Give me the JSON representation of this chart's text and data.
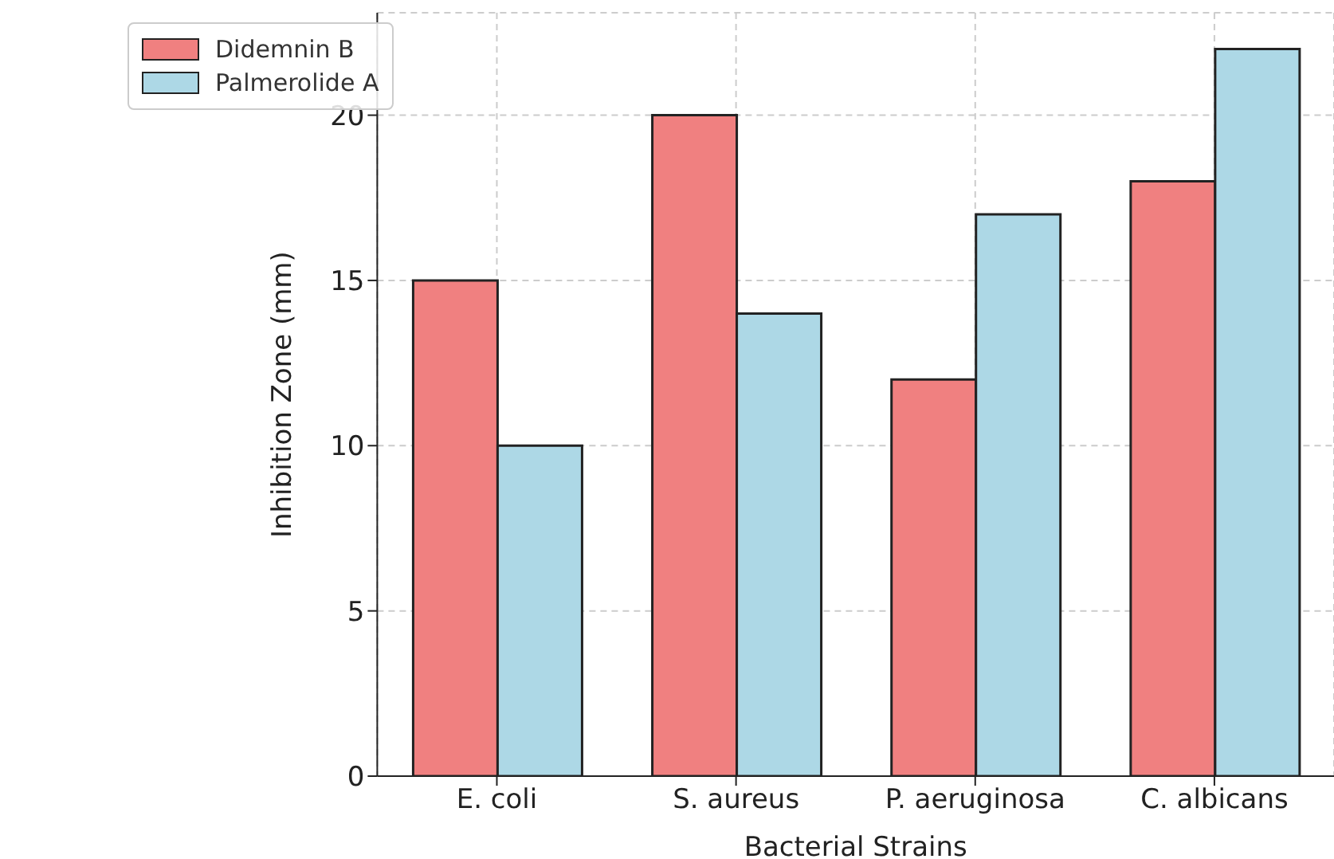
{
  "chart_data": {
    "type": "bar",
    "xlabel": "Bacterial Strains",
    "ylabel": "Inhibition Zone (mm)",
    "categories": [
      "E. coli",
      "S. aureus",
      "P. aeruginosa",
      "C. albicans"
    ],
    "series": [
      {
        "name": "Didemnin B",
        "color": "#f08080",
        "values": [
          15,
          20,
          12,
          18
        ]
      },
      {
        "name": "Palmerolide A",
        "color": "#add8e6",
        "values": [
          10,
          14,
          17,
          22
        ]
      }
    ],
    "ylim": [
      0,
      23.1
    ],
    "yticks": [
      0,
      5,
      10,
      15,
      20
    ],
    "grid": true,
    "legend": "top left"
  }
}
